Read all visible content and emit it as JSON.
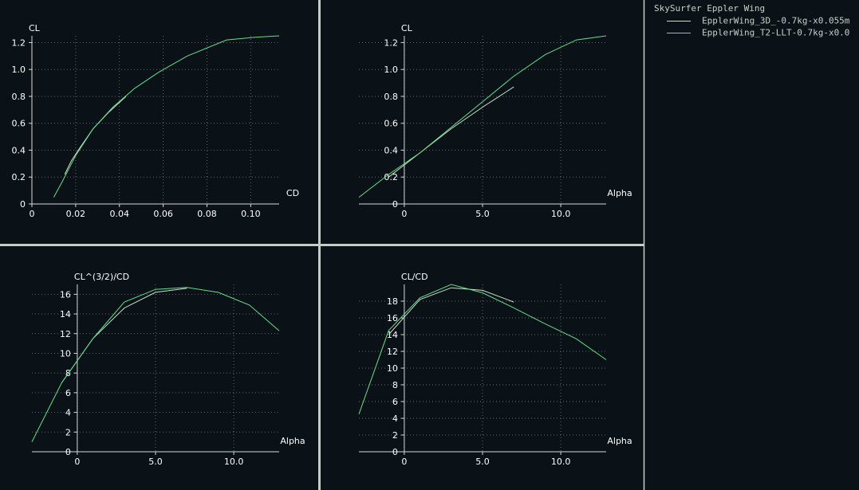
{
  "colors": {
    "background": "#0a1218",
    "separator": "#c8ccc8",
    "axis": "#d8d8d8",
    "grid": "#5f6a70",
    "text": "#ffffff"
  },
  "legend": {
    "title": "SkySurfer Eppler Wing",
    "items": [
      {
        "label": "EpplerWing_3D_-0.7kg-x0.055m",
        "color": "#c8e0c8"
      },
      {
        "label": "EpplerWing_T2-LLT-0.7kg-x0.0",
        "color": "#66dd88"
      }
    ]
  },
  "chart_data": [
    {
      "type": "line",
      "xlabel": "CD",
      "ylabel": "CL",
      "xlim": [
        0,
        0.113
      ],
      "ylim": [
        0,
        1.25
      ],
      "xticks": [
        0,
        0.02,
        0.04,
        0.06,
        0.08,
        0.1
      ],
      "xticklabels": [
        "0",
        "0.02",
        "0.04",
        "0.06",
        "0.08",
        "0.10"
      ],
      "yticks": [
        0,
        0.2,
        0.4,
        0.6,
        0.8,
        1.0,
        1.2
      ],
      "yticklabels": [
        "0",
        "0.2",
        "0.4",
        "0.6",
        "0.8",
        "1.0",
        "1.2"
      ],
      "series": [
        {
          "color": "#c8e0c8",
          "x": [
            0.015,
            0.018,
            0.022,
            0.028,
            0.035,
            0.043
          ],
          "y": [
            0.22,
            0.32,
            0.42,
            0.56,
            0.68,
            0.8
          ]
        },
        {
          "color": "#66dd88",
          "x": [
            0.01,
            0.014,
            0.02,
            0.028,
            0.037,
            0.047,
            0.058,
            0.071,
            0.089,
            0.102,
            0.113
          ],
          "y": [
            0.05,
            0.17,
            0.36,
            0.56,
            0.72,
            0.86,
            0.98,
            1.1,
            1.22,
            1.24,
            1.25
          ]
        }
      ]
    },
    {
      "type": "line",
      "xlabel": "Alpha",
      "ylabel": "CL",
      "xlim": [
        -2.9,
        12.9
      ],
      "ylim": [
        0,
        1.25
      ],
      "xticks": [
        0,
        5.0,
        10.0
      ],
      "xticklabels": [
        "0",
        "5.0",
        "10.0"
      ],
      "yticks": [
        0,
        0.2,
        0.4,
        0.6,
        0.8,
        1.0,
        1.2
      ],
      "yticklabels": [
        "0",
        "0.2",
        "0.4",
        "0.6",
        "0.8",
        "1.0",
        "1.2"
      ],
      "series": [
        {
          "color": "#c8e0c8",
          "x": [
            -1.0,
            1.0,
            3.0,
            5.0,
            7.0
          ],
          "y": [
            0.2,
            0.38,
            0.56,
            0.72,
            0.87
          ]
        },
        {
          "color": "#66dd88",
          "x": [
            -2.9,
            -1.0,
            1.0,
            3.0,
            5.0,
            7.0,
            9.0,
            11.0,
            12.9
          ],
          "y": [
            0.05,
            0.22,
            0.38,
            0.57,
            0.76,
            0.95,
            1.11,
            1.22,
            1.25
          ]
        }
      ]
    },
    {
      "type": "line",
      "xlabel": "Alpha",
      "ylabel": "CL^(3/2)/CD",
      "xlim": [
        -2.9,
        12.9
      ],
      "ylim": [
        0,
        17
      ],
      "xticks": [
        0,
        5.0,
        10.0
      ],
      "xticklabels": [
        "0",
        "5.0",
        "10.0"
      ],
      "yticks": [
        0,
        2,
        4,
        6,
        8,
        10,
        12,
        14,
        16
      ],
      "yticklabels": [
        "0",
        "2",
        "4",
        "6",
        "8",
        "10",
        "12",
        "14",
        "16"
      ],
      "series": [
        {
          "color": "#c8e0c8",
          "x": [
            -1.0,
            1.0,
            3.0,
            5.0,
            7.0
          ],
          "y": [
            7.0,
            11.5,
            14.6,
            16.2,
            16.6
          ]
        },
        {
          "color": "#66dd88",
          "x": [
            -2.9,
            -1.0,
            1.0,
            3.0,
            5.0,
            7.0,
            9.0,
            11.0,
            12.9
          ],
          "y": [
            1.0,
            7.0,
            11.5,
            15.2,
            16.5,
            16.7,
            16.2,
            14.9,
            12.3
          ]
        }
      ]
    },
    {
      "type": "line",
      "xlabel": "Alpha",
      "ylabel": "CL/CD",
      "xlim": [
        -2.9,
        12.9
      ],
      "ylim": [
        0,
        20
      ],
      "xticks": [
        0,
        5.0,
        10.0
      ],
      "xticklabels": [
        "0",
        "5.0",
        "10.0"
      ],
      "yticks": [
        0,
        2,
        4,
        6,
        8,
        10,
        12,
        14,
        16,
        18
      ],
      "yticklabels": [
        "0",
        "2",
        "4",
        "6",
        "8",
        "10",
        "12",
        "14",
        "16",
        "18"
      ],
      "series": [
        {
          "color": "#c8e0c8",
          "x": [
            -1.0,
            1.0,
            3.0,
            5.0,
            7.0
          ],
          "y": [
            14.0,
            18.2,
            19.6,
            19.3,
            17.9
          ]
        },
        {
          "color": "#66dd88",
          "x": [
            -2.9,
            -1.0,
            1.0,
            3.0,
            5.0,
            7.0,
            9.0,
            11.0,
            12.9
          ],
          "y": [
            4.5,
            14.5,
            18.4,
            20.0,
            19.0,
            17.2,
            15.3,
            13.5,
            11.0
          ]
        }
      ]
    }
  ]
}
